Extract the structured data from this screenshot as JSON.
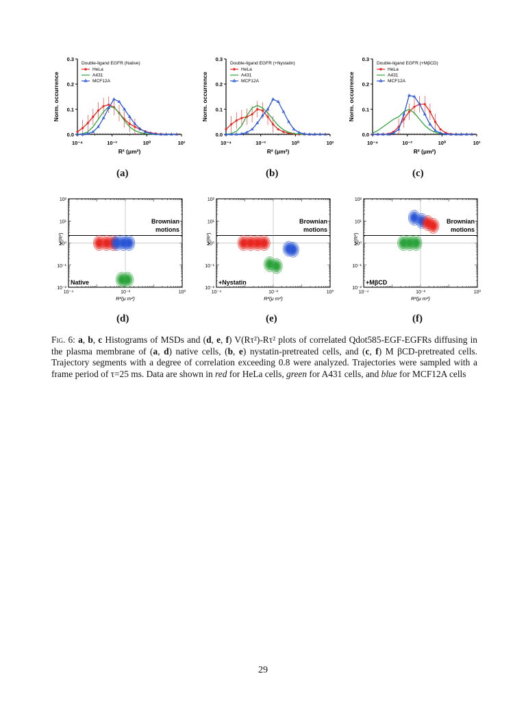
{
  "figure": {
    "histograms": [
      {
        "panel": "(a)",
        "legend_title": "Double-ligand EGFR (Native)"
      },
      {
        "panel": "(b)",
        "legend_title": "Double-ligand EGFR (+Nystatin)"
      },
      {
        "panel": "(c)",
        "legend_title": "Double-ligand EGFR (+MβCD)"
      }
    ],
    "histogram_legend": [
      "HeLa",
      "A431",
      "MCF12A"
    ],
    "histogram_ylabel": "Norm. occurrence",
    "histogram_xlabel": "R² (μm²)",
    "histogram_yticks": [
      "0.0",
      "0.1",
      "0.2",
      "0.3"
    ],
    "histogram_xticks": [
      "10⁻⁴",
      "10⁻²",
      "10⁰",
      "10²"
    ],
    "contours": [
      {
        "panel": "(d)",
        "label": "Native"
      },
      {
        "panel": "(e)",
        "label": "+Nystatin"
      },
      {
        "panel": "(f)",
        "label": "+MβCD"
      }
    ],
    "contour_annotation_line1": "Brownian",
    "contour_annotation_line2": "motions",
    "contour_ylabel": "V(R²)",
    "contour_xlabel": "R²(μ m²)",
    "contour_yticks": [
      "10²",
      "10¹",
      "10⁰",
      "10⁻¹",
      "10⁻²"
    ],
    "contour_xticks": [
      "10⁻⁴",
      "10⁻²",
      "10⁰"
    ],
    "colors": {
      "hela": "#e8251f",
      "a431": "#2ba33a",
      "mcf12a": "#2a56d6"
    }
  },
  "chart_data": [
    {
      "type": "line",
      "panel": "(a)",
      "title": "Double-ligand EGFR (Native)",
      "xlabel": "R² (μm²)",
      "ylabel": "Norm. occurrence",
      "xscale": "log",
      "xlim": [
        0.0001,
        100
      ],
      "ylim": [
        0,
        0.3
      ],
      "series": [
        {
          "name": "HeLa",
          "color": "#e8251f",
          "x": [
            0.0001,
            0.0002,
            0.0004,
            0.0008,
            0.0016,
            0.0032,
            0.0064,
            0.0128,
            0.0256,
            0.0512,
            0.1024,
            0.2048,
            0.4096,
            0.8192,
            1.6384,
            3.2768,
            6.5536,
            13.1,
            26.2,
            52.4
          ],
          "y": [
            0.01,
            0.025,
            0.045,
            0.07,
            0.095,
            0.112,
            0.118,
            0.108,
            0.085,
            0.06,
            0.042,
            0.03,
            0.02,
            0.012,
            0.006,
            0.003,
            0.001,
            0.0,
            0.0,
            0.0
          ]
        },
        {
          "name": "A431",
          "color": "#2ba33a",
          "x": [
            0.0001,
            0.0002,
            0.0004,
            0.0008,
            0.0016,
            0.0032,
            0.0064,
            0.0128,
            0.0256,
            0.0512,
            0.1024,
            0.2048,
            0.4096,
            0.8192,
            1.6384,
            3.2768,
            6.5536,
            13.1,
            26.2,
            52.4
          ],
          "y": [
            0.0,
            0.002,
            0.01,
            0.03,
            0.06,
            0.09,
            0.11,
            0.108,
            0.085,
            0.055,
            0.03,
            0.015,
            0.007,
            0.003,
            0.001,
            0.0,
            0.0,
            0.0,
            0.0,
            0.0
          ]
        },
        {
          "name": "MCF12A",
          "color": "#2a56d6",
          "x": [
            0.0001,
            0.0002,
            0.0004,
            0.0008,
            0.0016,
            0.0032,
            0.0064,
            0.0128,
            0.0256,
            0.0512,
            0.1024,
            0.2048,
            0.4096,
            0.8192,
            1.6384,
            3.2768,
            6.5536,
            13.1,
            26.2,
            52.4
          ],
          "y": [
            0.0,
            0.0,
            0.003,
            0.01,
            0.03,
            0.065,
            0.105,
            0.14,
            0.13,
            0.1,
            0.07,
            0.042,
            0.022,
            0.01,
            0.004,
            0.001,
            0.0,
            0.0,
            0.0,
            0.0
          ]
        }
      ]
    },
    {
      "type": "line",
      "panel": "(b)",
      "title": "Double-ligand EGFR (+Nystatin)",
      "xlabel": "R² (μm²)",
      "ylabel": "Norm. occurrence",
      "xscale": "log",
      "xlim": [
        0.0001,
        100
      ],
      "ylim": [
        0,
        0.3
      ],
      "series": [
        {
          "name": "HeLa",
          "color": "#e8251f",
          "x": [
            0.0001,
            0.0002,
            0.0004,
            0.0008,
            0.0016,
            0.0032,
            0.0064,
            0.0128,
            0.0256,
            0.0512,
            0.1024,
            0.2048,
            0.4096,
            0.8192,
            1.6384,
            3.2768,
            6.5536,
            13.1,
            26.2,
            52.4
          ],
          "y": [
            0.02,
            0.04,
            0.055,
            0.065,
            0.07,
            0.08,
            0.1,
            0.095,
            0.07,
            0.04,
            0.02,
            0.01,
            0.005,
            0.002,
            0.0,
            0.0,
            0.0,
            0.0,
            0.0,
            0.0
          ]
        },
        {
          "name": "A431",
          "color": "#2ba33a",
          "x": [
            0.0001,
            0.0002,
            0.0004,
            0.0008,
            0.0016,
            0.0032,
            0.0064,
            0.0128,
            0.0256,
            0.0512,
            0.1024,
            0.2048,
            0.4096,
            0.8192,
            1.6384,
            3.2768,
            6.5536,
            13.1,
            26.2,
            52.4
          ],
          "y": [
            0.0,
            0.003,
            0.012,
            0.035,
            0.075,
            0.105,
            0.115,
            0.105,
            0.085,
            0.06,
            0.035,
            0.018,
            0.008,
            0.003,
            0.001,
            0.0,
            0.0,
            0.0,
            0.0,
            0.0
          ]
        },
        {
          "name": "MCF12A",
          "color": "#2a56d6",
          "x": [
            0.0001,
            0.0002,
            0.0004,
            0.0008,
            0.0016,
            0.0032,
            0.0064,
            0.0128,
            0.0256,
            0.0512,
            0.1024,
            0.2048,
            0.4096,
            0.8192,
            1.6384,
            3.2768,
            6.5536,
            13.1,
            26.2,
            52.4
          ],
          "y": [
            0.0,
            0.0,
            0.0,
            0.002,
            0.008,
            0.02,
            0.045,
            0.075,
            0.1,
            0.14,
            0.13,
            0.09,
            0.05,
            0.02,
            0.007,
            0.002,
            0.0,
            0.0,
            0.0,
            0.0
          ]
        }
      ]
    },
    {
      "type": "line",
      "panel": "(c)",
      "title": "Double-ligand EGFR (+MβCD)",
      "xlabel": "R² (μm²)",
      "ylabel": "Norm. occurrence",
      "xscale": "log",
      "xlim": [
        0.0001,
        100
      ],
      "ylim": [
        0,
        0.3
      ],
      "series": [
        {
          "name": "HeLa",
          "color": "#e8251f",
          "x": [
            0.0001,
            0.0002,
            0.0004,
            0.0008,
            0.0016,
            0.0032,
            0.0064,
            0.0128,
            0.0256,
            0.0512,
            0.1024,
            0.2048,
            0.4096,
            0.8192,
            1.6384,
            3.2768,
            6.5536,
            13.1,
            26.2,
            52.4
          ],
          "y": [
            0.0,
            0.0,
            0.0,
            0.002,
            0.01,
            0.03,
            0.06,
            0.09,
            0.11,
            0.12,
            0.12,
            0.09,
            0.05,
            0.02,
            0.006,
            0.001,
            0.0,
            0.0,
            0.0,
            0.0
          ]
        },
        {
          "name": "A431",
          "color": "#2ba33a",
          "x": [
            0.0001,
            0.0002,
            0.0004,
            0.0008,
            0.0016,
            0.0032,
            0.0064,
            0.0128,
            0.0256,
            0.0512,
            0.1024,
            0.2048,
            0.4096,
            0.8192,
            1.6384,
            3.2768,
            6.5536,
            13.1,
            26.2,
            52.4
          ],
          "y": [
            0.005,
            0.015,
            0.03,
            0.045,
            0.06,
            0.07,
            0.09,
            0.1,
            0.085,
            0.06,
            0.035,
            0.018,
            0.008,
            0.003,
            0.001,
            0.0,
            0.0,
            0.0,
            0.0,
            0.0
          ]
        },
        {
          "name": "MCF12A",
          "color": "#2a56d6",
          "x": [
            0.0001,
            0.0002,
            0.0004,
            0.0008,
            0.0016,
            0.0032,
            0.0064,
            0.0128,
            0.0256,
            0.0512,
            0.1024,
            0.2048,
            0.4096,
            0.8192,
            1.6384,
            3.2768,
            6.5536,
            13.1,
            26.2,
            52.4
          ],
          "y": [
            0.0,
            0.0,
            0.0,
            0.0,
            0.005,
            0.02,
            0.08,
            0.155,
            0.15,
            0.12,
            0.08,
            0.04,
            0.015,
            0.005,
            0.001,
            0.0,
            0.0,
            0.0,
            0.0,
            0.0
          ]
        }
      ]
    },
    {
      "type": "scatter",
      "panel": "(d)",
      "xlabel": "R²(μ m²)",
      "ylabel": "V(R²)",
      "xscale": "log",
      "yscale": "log",
      "xlim": [
        0.0001,
        1
      ],
      "ylim": [
        0.01,
        100
      ],
      "annotation": "Brownian motions",
      "label": "Native",
      "series": [
        {
          "name": "HeLa",
          "color": "#e8251f",
          "x": [
            0.0012,
            0.0022,
            0.0038
          ],
          "y": [
            1.0,
            1.0,
            1.0
          ]
        },
        {
          "name": "MCF12A",
          "color": "#2a56d6",
          "x": [
            0.005,
            0.0085,
            0.0135
          ],
          "y": [
            1.0,
            1.0,
            1.0
          ]
        },
        {
          "name": "A431",
          "color": "#2ba33a",
          "x": [
            0.0075,
            0.012
          ],
          "y": [
            0.022,
            0.022
          ]
        }
      ]
    },
    {
      "type": "scatter",
      "panel": "(e)",
      "xlabel": "R²(μ m²)",
      "ylabel": "V(R²)",
      "xscale": "log",
      "yscale": "log",
      "xlim": [
        0.0001,
        1
      ],
      "ylim": [
        0.01,
        100
      ],
      "annotation": "Brownian motions",
      "label": "+Nystatin",
      "series": [
        {
          "name": "HeLa",
          "color": "#e8251f",
          "x": [
            0.0009,
            0.0016,
            0.0028,
            0.0048
          ],
          "y": [
            1.0,
            1.0,
            1.0,
            1.0
          ]
        },
        {
          "name": "A431",
          "color": "#2ba33a",
          "x": [
            0.0075,
            0.013
          ],
          "y": [
            0.11,
            0.09
          ]
        },
        {
          "name": "MCF12A",
          "color": "#2a56d6",
          "x": [
            0.035,
            0.05
          ],
          "y": [
            0.55,
            0.5
          ]
        }
      ]
    },
    {
      "type": "scatter",
      "panel": "(f)",
      "xlabel": "R²(μ m²)",
      "ylabel": "V(R²)",
      "xscale": "log",
      "yscale": "log",
      "xlim": [
        0.0001,
        1
      ],
      "ylim": [
        0.01,
        100
      ],
      "annotation": "Brownian motions",
      "label": "+MβCD",
      "series": [
        {
          "name": "MCF12A",
          "color": "#2a56d6",
          "x": [
            0.006,
            0.011
          ],
          "y": [
            14,
            10
          ]
        },
        {
          "name": "HeLa",
          "color": "#e8251f",
          "x": [
            0.018,
            0.028
          ],
          "y": [
            8,
            6
          ]
        },
        {
          "name": "A431",
          "color": "#2ba33a",
          "x": [
            0.0025,
            0.0042,
            0.007
          ],
          "y": [
            1.0,
            1.0,
            1.0
          ]
        }
      ]
    }
  ],
  "caption": {
    "fig_label": "Fig. 6:",
    "text_1": " a",
    "text_2": ", ",
    "text_3": "b",
    "text_4": ", ",
    "text_5": "c",
    "text_6": " Histograms of MSDs and (",
    "text_7": "d",
    "text_8": ", ",
    "text_9": "e",
    "text_10": ", ",
    "text_11": "f",
    "text_12": ") V(Rτ²)-Rτ² plots of correlated Qdot585-EGF-EGFRs diffusing in the plasma membrane of (",
    "text_13": "a",
    "text_14": ", ",
    "text_15": "d",
    "text_16": ") native cells, (",
    "text_17": "b",
    "text_18": ", ",
    "text_19": "e",
    "text_20": ") nystatin-pretreated cells, and (",
    "text_21": "c",
    "text_22": ", ",
    "text_23": "f",
    "text_24": ") M βCD-pretreated cells. Trajectory segments with a degree of correlation exceeding 0.8 were analyzed. Trajectories were sampled with a frame period of τ=25 ms. Data are shown in ",
    "red": "red",
    "text_25": " for HeLa cells, ",
    "green": "green",
    "text_26": " for A431 cells, and ",
    "blue": "blue",
    "text_27": " for MCF12A cells"
  },
  "page_number": "29"
}
